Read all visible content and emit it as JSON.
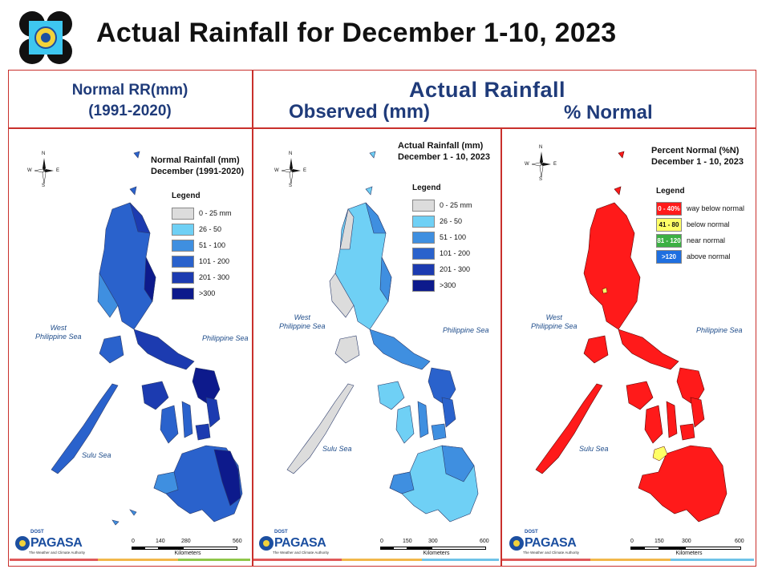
{
  "header": {
    "title": "Actual Rainfall for December 1-10, 2023",
    "normal_line1": "Normal RR(mm)",
    "normal_line2": "(1991-2020)",
    "actual": "Actual Rainfall",
    "observed": "Observed (mm)",
    "percent": "% Normal"
  },
  "compass": {
    "n": "N",
    "s": "S",
    "e": "E",
    "w": "W"
  },
  "seas": {
    "west_line1": "West",
    "west_line2": "Philippine Sea",
    "philippine": "Philippine Sea",
    "sulu": "Sulu Sea"
  },
  "logo_text": {
    "dost": "DOST",
    "pagasa": "PAGASA",
    "tagline": "The Weather and Climate Authority"
  },
  "panels": [
    {
      "title_line1": "Normal Rainfall (mm)",
      "title_line2": "December (1991-2020)",
      "legend_title": "Legend",
      "legend": [
        {
          "label": "0 - 25 mm",
          "color": "#dcdcdc"
        },
        {
          "label": "26 - 50",
          "color": "#6fd0f5"
        },
        {
          "label": "51 - 100",
          "color": "#3f8fe0"
        },
        {
          "label": "101 - 200",
          "color": "#2a62cc"
        },
        {
          "label": "201 - 300",
          "color": "#1c3bb0"
        },
        {
          "label": ">300",
          "color": "#0d1a8c"
        }
      ],
      "scale": {
        "ticks": [
          "0",
          "140",
          "280",
          "560"
        ],
        "unit": "Kilometers"
      }
    },
    {
      "title_line1": "Actual Rainfall (mm)",
      "title_line2": "December 1 - 10, 2023",
      "legend_title": "Legend",
      "legend": [
        {
          "label": "0 - 25 mm",
          "color": "#dcdcdc"
        },
        {
          "label": "26 - 50",
          "color": "#6fd0f5"
        },
        {
          "label": "51 - 100",
          "color": "#3f8fe0"
        },
        {
          "label": "101 - 200",
          "color": "#2a62cc"
        },
        {
          "label": "201 - 300",
          "color": "#1c3bb0"
        },
        {
          "label": ">300",
          "color": "#0d1a8c"
        }
      ],
      "scale": {
        "ticks": [
          "0",
          "150",
          "300",
          "600"
        ],
        "unit": "Kilometers"
      }
    },
    {
      "title_line1": "Percent Normal (%N)",
      "title_line2": "December 1 - 10, 2023",
      "legend_title": "Legend",
      "legend": [
        {
          "range": "0 - 40%",
          "label": "way below normal",
          "color": "#ff1a1a"
        },
        {
          "range": "41 - 80",
          "label": "below normal",
          "color": "#ffff66"
        },
        {
          "range": "81 - 120",
          "label": "near normal",
          "color": "#3cb043"
        },
        {
          "range": ">120",
          "label": "above normal",
          "color": "#1f6fe0"
        }
      ],
      "scale": {
        "ticks": [
          "0",
          "150",
          "300",
          "600"
        ],
        "unit": "Kilometers"
      }
    }
  ]
}
